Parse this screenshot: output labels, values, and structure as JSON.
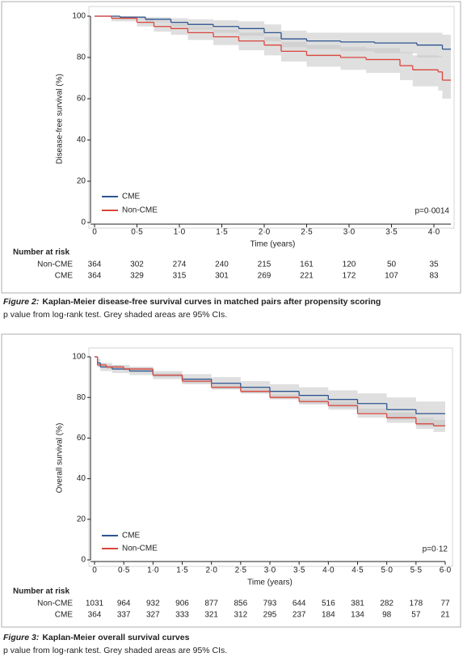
{
  "chart_data": [
    {
      "type": "step",
      "y_label": "Disease-free survival (%)",
      "x_label": "Time (years)",
      "xlim": [
        0,
        4.2
      ],
      "xticks": [
        0,
        {
          "value": 0.5,
          "label": "0·5"
        },
        {
          "value": 1,
          "label": "1·0"
        },
        {
          "value": 1.5,
          "label": "1·5"
        },
        {
          "value": 2,
          "label": "2·0"
        },
        {
          "value": 2.5,
          "label": "2·5"
        },
        {
          "value": 3,
          "label": "3·0"
        },
        {
          "value": 3.5,
          "label": "3·5"
        },
        {
          "value": 4,
          "label": "4·0"
        }
      ],
      "ylim": [
        0,
        100
      ],
      "yticks": [
        0,
        20,
        40,
        60,
        80,
        100
      ],
      "annotation": "p=0·0014",
      "ci_color": "#c4c4c4",
      "series": [
        {
          "name": "CME",
          "color": "#2e5590",
          "x": [
            0,
            0.3,
            0.6,
            0.9,
            1.1,
            1.4,
            1.7,
            2.0,
            2.2,
            2.5,
            2.9,
            3.3,
            3.8,
            4.1,
            4.2
          ],
          "values": [
            100,
            99.5,
            98.5,
            97,
            96,
            95,
            94,
            92,
            89,
            88,
            87.5,
            87,
            86,
            84,
            84
          ],
          "lower": [
            100,
            98.5,
            97,
            95,
            93.5,
            92,
            90.5,
            88,
            85,
            84,
            83,
            82,
            80,
            77,
            77
          ],
          "upper": [
            100,
            100,
            99.5,
            99,
            98.5,
            98,
            97.5,
            96,
            93,
            92,
            92,
            92,
            92,
            91,
            91
          ]
        },
        {
          "name": "Non-CME",
          "color": "#d9463c",
          "x": [
            0,
            0.2,
            0.5,
            0.7,
            0.9,
            1.1,
            1.4,
            1.7,
            2.0,
            2.2,
            2.5,
            2.9,
            3.2,
            3.6,
            3.75,
            4.05,
            4.1,
            4.2
          ],
          "values": [
            100,
            99,
            97,
            95,
            94,
            92,
            90,
            88,
            86,
            83,
            81,
            80,
            79,
            76,
            74,
            73,
            69,
            69
          ],
          "lower": [
            100,
            97.5,
            95,
            92.5,
            91,
            88.5,
            86,
            83.5,
            81,
            78,
            75.5,
            74,
            72.5,
            69,
            66,
            64,
            60,
            60
          ],
          "upper": [
            100,
            100,
            99,
            97.5,
            96.5,
            95,
            93.5,
            92,
            90,
            87.5,
            86,
            85,
            84.5,
            82.5,
            81,
            80.5,
            77,
            77
          ]
        }
      ],
      "risk_table": {
        "title": "Number at risk",
        "rows": [
          {
            "name": "Non-CME",
            "values": [
              364,
              302,
              274,
              240,
              215,
              161,
              120,
              50,
              35
            ]
          },
          {
            "name": "CME",
            "values": [
              364,
              329,
              315,
              301,
              269,
              221,
              172,
              107,
              83
            ]
          }
        ]
      },
      "figure_label": "Figure 2:",
      "caption": "Kaplan-Meier disease-free survival curves in matched pairs after propensity scoring",
      "note": "p value from log-rank test. Grey shaded areas are 95% CIs."
    },
    {
      "type": "step",
      "y_label": "Overall survival (%)",
      "x_label": "Time (years)",
      "xlim": [
        0,
        6
      ],
      "xticks": [
        0,
        {
          "value": 0.5,
          "label": "0·5"
        },
        {
          "value": 1,
          "label": "1·0"
        },
        {
          "value": 1.5,
          "label": "1·5"
        },
        {
          "value": 2,
          "label": "2·0"
        },
        {
          "value": 2.5,
          "label": "2·5"
        },
        {
          "value": 3,
          "label": "3·0"
        },
        {
          "value": 3.5,
          "label": "3·5"
        },
        {
          "value": 4,
          "label": "4·0"
        },
        {
          "value": 4.5,
          "label": "4·5"
        },
        {
          "value": 5,
          "label": "5·0"
        },
        {
          "value": 5.5,
          "label": "5·5"
        },
        {
          "value": 6,
          "label": "6·0"
        }
      ],
      "ylim": [
        0,
        100
      ],
      "yticks": [
        0,
        20,
        40,
        60,
        80,
        100
      ],
      "annotation": "p=0·12",
      "ci_color": "#c4c4c4",
      "series": [
        {
          "name": "CME",
          "color": "#2e5590",
          "x": [
            0,
            0.05,
            0.1,
            0.3,
            0.6,
            1.0,
            1.5,
            2.0,
            2.5,
            3.0,
            3.5,
            4.0,
            4.5,
            5.0,
            5.5,
            6.0
          ],
          "values": [
            100,
            97,
            95,
            94,
            93,
            91,
            89,
            87,
            85,
            83,
            81,
            79,
            77,
            74,
            72,
            72
          ],
          "lower": [
            100,
            95,
            93,
            92,
            91,
            89,
            86.5,
            84,
            82,
            79.5,
            77,
            75,
            72.5,
            69,
            66,
            66
          ],
          "upper": [
            100,
            99,
            97,
            96,
            95,
            93,
            91.5,
            90,
            88,
            86.5,
            85,
            83.5,
            82,
            80,
            78,
            78
          ]
        },
        {
          "name": "Non-CME",
          "color": "#d9463c",
          "x": [
            0,
            0.05,
            0.2,
            0.5,
            1.0,
            1.5,
            2.0,
            2.5,
            3.0,
            3.5,
            4.0,
            4.5,
            5.0,
            5.5,
            5.8,
            6.0
          ],
          "values": [
            100,
            96,
            95,
            94,
            91,
            88,
            85,
            83,
            80,
            78,
            76,
            72,
            70,
            67,
            66,
            66
          ],
          "lower": [
            100,
            95,
            94,
            93,
            90,
            87,
            84,
            82,
            79,
            76.5,
            74,
            70,
            67.5,
            64.5,
            63,
            63
          ],
          "upper": [
            100,
            97,
            96,
            95,
            92,
            89.5,
            86.5,
            84.5,
            81.5,
            79.5,
            78,
            74.5,
            72.5,
            70,
            69,
            69
          ]
        }
      ],
      "risk_table": {
        "title": "Number at risk",
        "rows": [
          {
            "name": "Non-CME",
            "values": [
              1031,
              964,
              932,
              906,
              877,
              856,
              793,
              644,
              516,
              381,
              282,
              178,
              77
            ]
          },
          {
            "name": "CME",
            "values": [
              364,
              337,
              327,
              333,
              321,
              312,
              295,
              237,
              184,
              134,
              98,
              57,
              21
            ]
          }
        ]
      },
      "figure_label": "Figure 3:",
      "caption": "Kaplan-Meier overall survival curves",
      "note": "p value from log-rank test. Grey shaded areas are 95% CIs."
    }
  ]
}
